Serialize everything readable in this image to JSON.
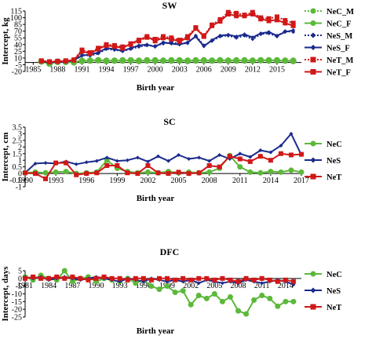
{
  "colors": {
    "NeC": "#5cb83a",
    "NeS": "#1a2a8c",
    "NeT": "#d01818"
  },
  "chart_data": [
    {
      "type": "line",
      "title": "SW",
      "xlabel": "Birth year",
      "ylabel": "Intercept, kg",
      "xlim": [
        1984,
        2018
      ],
      "ylim": [
        -20,
        115
      ],
      "xticks": [
        1985,
        1988,
        1991,
        1994,
        1997,
        2000,
        2003,
        2006,
        2009,
        2012,
        2015
      ],
      "yticks": [
        -20,
        -5,
        10,
        25,
        40,
        55,
        70,
        85,
        100,
        115
      ],
      "x": [
        1986,
        1987,
        1988,
        1989,
        1990,
        1991,
        1992,
        1993,
        1994,
        1995,
        1996,
        1997,
        1998,
        1999,
        2000,
        2001,
        2002,
        2003,
        2004,
        2005,
        2006,
        2007,
        2008,
        2009,
        2010,
        2011,
        2012,
        2013,
        2014,
        2015,
        2016,
        2017
      ],
      "legend": [
        "NeC_M",
        "NeC_F",
        "NeS_M",
        "NeS_F",
        "NeT_M",
        "NeT_F"
      ],
      "series": [
        {
          "name": "NeC_M",
          "color_key": "NeC",
          "style": "dotted",
          "values": [
            2,
            0,
            1,
            2,
            0,
            3,
            4,
            5,
            3,
            4,
            5,
            4,
            3,
            5,
            4,
            4,
            5,
            4,
            3,
            5,
            4,
            4,
            5,
            4,
            4,
            5,
            4,
            5,
            4,
            5,
            4,
            4
          ]
        },
        {
          "name": "NeC_F",
          "color_key": "NeC",
          "style": "solid",
          "values": [
            2,
            -3,
            2,
            1,
            1,
            4,
            4,
            5,
            4,
            4,
            4,
            5,
            4,
            4,
            5,
            4,
            4,
            5,
            4,
            4,
            5,
            4,
            5,
            4,
            5,
            4,
            4,
            5,
            5,
            4,
            4,
            3
          ]
        },
        {
          "name": "NeS_M",
          "color_key": "NeS",
          "style": "dotted",
          "values": [
            3,
            1,
            2,
            3,
            5,
            17,
            15,
            20,
            30,
            28,
            25,
            30,
            35,
            38,
            37,
            42,
            45,
            42,
            43,
            60,
            38,
            48,
            58,
            60,
            55,
            60,
            52,
            63,
            65,
            58,
            70,
            68
          ]
        },
        {
          "name": "NeS_F",
          "color_key": "NeS",
          "style": "solid",
          "values": [
            2,
            0,
            1,
            1,
            5,
            15,
            18,
            22,
            32,
            30,
            26,
            32,
            38,
            40,
            35,
            45,
            42,
            40,
            45,
            58,
            36,
            50,
            60,
            62,
            58,
            63,
            56,
            65,
            68,
            60,
            68,
            72
          ]
        },
        {
          "name": "NeT_M",
          "color_key": "NeT",
          "style": "dotted",
          "values": [
            4,
            2,
            3,
            4,
            6,
            28,
            22,
            32,
            40,
            38,
            35,
            40,
            48,
            56,
            52,
            58,
            55,
            50,
            58,
            78,
            60,
            84,
            96,
            112,
            110,
            106,
            112,
            100,
            98,
            102,
            94,
            88
          ]
        },
        {
          "name": "NeT_F",
          "color_key": "NeT",
          "style": "solid",
          "values": [
            3,
            1,
            2,
            3,
            5,
            25,
            20,
            30,
            38,
            36,
            32,
            42,
            50,
            58,
            48,
            55,
            52,
            47,
            55,
            76,
            58,
            82,
            92,
            108,
            104,
            104,
            108,
            97,
            93,
            95,
            88,
            82
          ]
        }
      ]
    },
    {
      "type": "line",
      "title": "SC",
      "xlabel": "Birth year",
      "ylabel": "Intercept, cm",
      "xlim": [
        1990,
        2017
      ],
      "ylim": [
        -1,
        3.5
      ],
      "xticks": [
        1990,
        1993,
        1996,
        1999,
        2002,
        2005,
        2008,
        2011,
        2014,
        2017
      ],
      "yticks": [
        -1,
        -0.5,
        0,
        0.5,
        1,
        1.5,
        2,
        2.5,
        3,
        3.5
      ],
      "x": [
        1990,
        1991,
        1992,
        1993,
        1994,
        1995,
        1996,
        1997,
        1998,
        1999,
        2000,
        2001,
        2002,
        2003,
        2004,
        2005,
        2006,
        2007,
        2008,
        2009,
        2010,
        2011,
        2012,
        2013,
        2014,
        2015,
        2016,
        2017
      ],
      "legend": [
        "NeC",
        "NeS",
        "NeT"
      ],
      "series": [
        {
          "name": "NeC",
          "color_key": "NeC",
          "style": "solid",
          "values": [
            0.05,
            0.1,
            0.05,
            0.1,
            0.15,
            0.0,
            0.05,
            0.1,
            1.0,
            0.4,
            0.15,
            0.05,
            0.1,
            0.05,
            0.15,
            0.05,
            0.1,
            0.05,
            0.1,
            0.4,
            1.35,
            0.5,
            0.1,
            0.05,
            0.15,
            0.1,
            0.25,
            0.1
          ]
        },
        {
          "name": "NeS",
          "color_key": "NeS",
          "style": "solid",
          "values": [
            0.05,
            0.75,
            0.8,
            0.75,
            0.9,
            0.7,
            0.85,
            0.95,
            1.2,
            0.95,
            1.0,
            1.2,
            0.9,
            1.3,
            0.95,
            1.4,
            1.1,
            1.2,
            0.95,
            1.4,
            1.1,
            1.5,
            1.25,
            1.75,
            1.6,
            2.1,
            3.0,
            1.4
          ]
        },
        {
          "name": "NeT",
          "color_key": "NeT",
          "style": "solid",
          "values": [
            0.05,
            0.0,
            -0.4,
            0.8,
            0.8,
            -0.1,
            0.0,
            0.05,
            0.6,
            0.6,
            0.05,
            0.0,
            0.6,
            0.05,
            0.0,
            0.1,
            0.0,
            0.05,
            0.6,
            0.5,
            1.3,
            1.1,
            0.9,
            1.3,
            1.0,
            1.5,
            1.4,
            1.45
          ]
        }
      ]
    },
    {
      "type": "line",
      "title": "DFC",
      "xlabel": "Birth year",
      "ylabel": "Intercept, days",
      "xlim": [
        1981,
        2016
      ],
      "ylim": [
        -25,
        5
      ],
      "xticks": [
        1981,
        1984,
        1987,
        1990,
        1993,
        1996,
        1999,
        2002,
        2005,
        2008,
        2011,
        2014
      ],
      "yticks": [
        -25,
        -20,
        -15,
        -10,
        -5,
        0,
        5
      ],
      "x": [
        1981,
        1982,
        1983,
        1984,
        1985,
        1986,
        1987,
        1988,
        1989,
        1990,
        1991,
        1992,
        1993,
        1994,
        1995,
        1996,
        1997,
        1998,
        1999,
        2000,
        2001,
        2002,
        2003,
        2004,
        2005,
        2006,
        2007,
        2008,
        2009,
        2010,
        2011,
        2012,
        2013,
        2014,
        2015
      ],
      "legend": [
        "NeC",
        "NeS",
        "NeT"
      ],
      "series": [
        {
          "name": "NeC",
          "color_key": "NeC",
          "style": "solid",
          "values": [
            1,
            -1,
            2,
            0,
            -1,
            5,
            -2,
            0,
            1,
            -2,
            0,
            -1,
            -2,
            0,
            -3,
            -1,
            -5,
            -7,
            -5,
            -9,
            -8,
            -17,
            -11,
            -13,
            -10,
            -15,
            -12,
            -21,
            -23,
            -14,
            -11,
            -13,
            -18,
            -15,
            -15
          ]
        },
        {
          "name": "NeS",
          "color_key": "NeS",
          "style": "solid",
          "values": [
            1,
            0,
            1,
            -1,
            0,
            1,
            0,
            -1,
            0,
            1,
            0,
            -1,
            -2,
            0,
            -1,
            -2,
            0,
            -1,
            -2,
            -1,
            -2,
            -1,
            -3,
            -1,
            -2,
            -3,
            -2,
            -3,
            -1,
            -2,
            -3,
            -2,
            -1,
            -2,
            -4
          ]
        },
        {
          "name": "NeT",
          "color_key": "NeT",
          "style": "solid",
          "values": [
            0,
            1,
            0,
            0,
            1,
            0,
            1,
            0,
            -1,
            0,
            1,
            0,
            0,
            -1,
            0,
            0,
            -1,
            0,
            0,
            -1,
            0,
            -1,
            0,
            0,
            -1,
            0,
            -1,
            -2,
            0,
            -1,
            0,
            -1,
            -2,
            -1,
            -2
          ]
        }
      ]
    }
  ]
}
